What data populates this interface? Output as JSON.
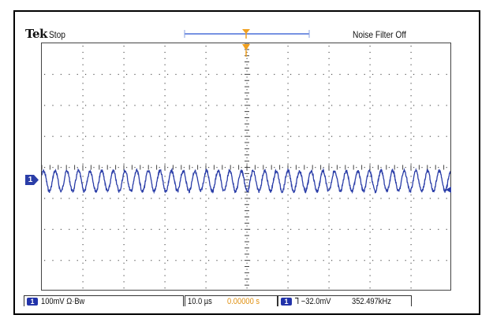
{
  "header": {
    "brand": "Tek",
    "acquisition_state": "Stop",
    "noise_filter": "Noise Filter Off"
  },
  "channel": {
    "number": "1",
    "scale": "100mV",
    "bandwidth": "Ω·Bw",
    "trace_color": "#2b3ea8",
    "frequency_hz": 352497
  },
  "footer": {
    "channel_scale": "100mV Ω·Bw",
    "time_per_div": "10.0 µs",
    "trigger_position": "0.00000 s",
    "trigger_source": "1",
    "trigger_level": "⅂ −32.0mV",
    "frequency_readout": "352.497kHz"
  },
  "colors": {
    "trigger_marker": "#f0a020",
    "record_bar": "#4a6fd8",
    "trigger_position_text": "#e09010",
    "channel_badge": "#2233aa"
  }
}
